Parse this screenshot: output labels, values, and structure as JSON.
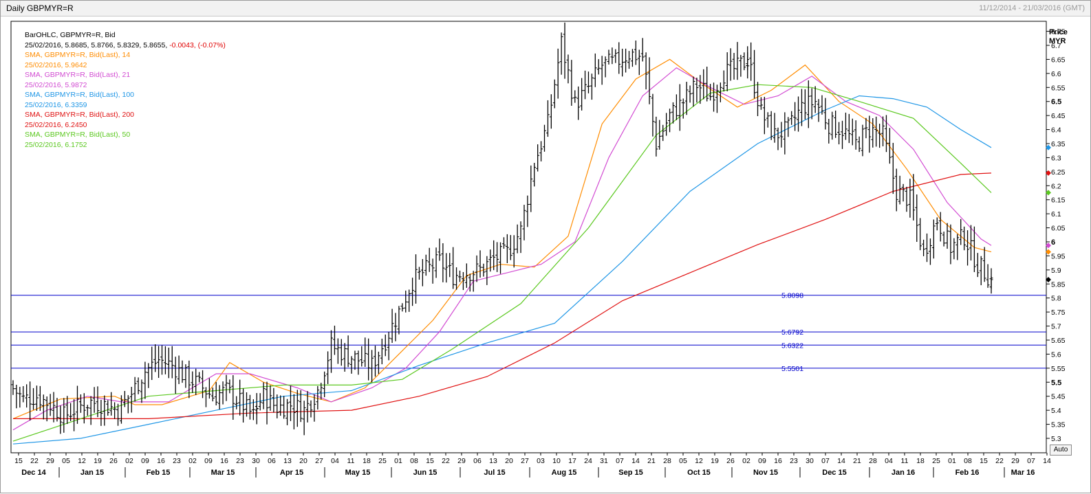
{
  "header": {
    "title": "Daily GBPMYR=R",
    "date_range": "11/12/2014 - 21/03/2016 (GMT)"
  },
  "legend": [
    {
      "text": "BarOHLC, GBPMYR=R, Bid",
      "color": "#000000"
    },
    {
      "text": "25/02/2016, 5.8685, 5.8766, 5.8329, 5.8655, ",
      "extra": "-0.0043, (-0.07%)",
      "color": "#000000",
      "extra_color": "#e00000"
    },
    {
      "text": "SMA, GBPMYR=R, Bid(Last),  14",
      "color": "#ff8c00"
    },
    {
      "text": "25/02/2016, 5.9642",
      "color": "#ff8c00"
    },
    {
      "text": "SMA, GBPMYR=R, Bid(Last),  21",
      "color": "#d24bd2"
    },
    {
      "text": "25/02/2016, 5.9872",
      "color": "#d24bd2"
    },
    {
      "text": "SMA, GBPMYR=R, Bid(Last),  100",
      "color": "#1e96e6"
    },
    {
      "text": "25/02/2016, 6.3359",
      "color": "#1e96e6"
    },
    {
      "text": "SMA, GBPMYR=R, Bid(Last),  200",
      "color": "#e01010"
    },
    {
      "text": "25/02/2016, 6.2450",
      "color": "#e01010"
    },
    {
      "text": "SMA, GBPMYR=R, Bid(Last),  50",
      "color": "#5ac81e"
    },
    {
      "text": "25/02/2016, 6.1752",
      "color": "#5ac81e"
    }
  ],
  "auto_button": "Auto",
  "chart_data": {
    "type": "line",
    "ylabel": "Price\nMYR",
    "ylim": [
      5.26,
      6.8
    ],
    "y_ticks": [
      "5.3",
      "5.35",
      "5.4",
      "5.45",
      "5.5",
      "5.55",
      "5.6",
      "5.65",
      "5.7",
      "5.75",
      "5.8",
      "5.85",
      "5.9",
      "5.95",
      "6",
      "6.05",
      "6.1",
      "6.15",
      "6.2",
      "6.25",
      "6.3",
      "6.35",
      "6.4",
      "6.45",
      "6.5",
      "6.55",
      "6.6",
      "6.65",
      "6.7",
      "6.75"
    ],
    "bold_y_ticks": [
      "5.5",
      "6",
      "6.5"
    ],
    "x_day_ticks": [
      "15",
      "22",
      "29",
      "05",
      "12",
      "19",
      "26",
      "02",
      "09",
      "16",
      "23",
      "02",
      "09",
      "16",
      "23",
      "30",
      "06",
      "13",
      "20",
      "27",
      "04",
      "11",
      "18",
      "25",
      "01",
      "08",
      "15",
      "22",
      "29",
      "06",
      "13",
      "20",
      "27",
      "03",
      "10",
      "17",
      "24",
      "31",
      "07",
      "14",
      "21",
      "28",
      "05",
      "12",
      "19",
      "26",
      "02",
      "09",
      "16",
      "23",
      "30",
      "07",
      "14",
      "21",
      "28",
      "04",
      "11",
      "18",
      "25",
      "01",
      "08",
      "15",
      "22",
      "29",
      "07",
      "14"
    ],
    "x_month_ticks": [
      "Dec 14",
      "Jan 15",
      "Feb 15",
      "Mar 15",
      "Apr 15",
      "May 15",
      "Jun 15",
      "Jul 15",
      "Aug 15",
      "Sep 15",
      "Oct 15",
      "Nov 15",
      "Dec 15",
      "Jan 16",
      "Feb 16",
      "Mar 16"
    ],
    "weekly_close": [
      5.49,
      5.44,
      5.45,
      5.42,
      5.38,
      5.41,
      5.43,
      5.42,
      5.4,
      5.46,
      5.54,
      5.58,
      5.56,
      5.52,
      5.49,
      5.45,
      5.47,
      5.43,
      5.38,
      5.45,
      5.41,
      5.42,
      5.4,
      5.47,
      5.63,
      5.6,
      5.58,
      5.56,
      5.65,
      5.75,
      5.86,
      5.9,
      5.93,
      5.88,
      5.89,
      5.9,
      5.94,
      5.96,
      6.04,
      6.28,
      6.42,
      6.71,
      6.49,
      6.55,
      6.63,
      6.64,
      6.67,
      6.66,
      6.35,
      6.45,
      6.5,
      6.56,
      6.52,
      6.6,
      6.62,
      6.66,
      6.46,
      6.38,
      6.4,
      6.48,
      6.5,
      6.42,
      6.4,
      6.35,
      6.4,
      6.38,
      6.18,
      6.15,
      5.96,
      6.08,
      5.98,
      6.02,
      5.92,
      5.8655
    ],
    "series": [
      {
        "name": "SMA 14",
        "color": "#ff8c00",
        "last": 5.9642,
        "points": [
          [
            0,
            5.37
          ],
          [
            14,
            5.44
          ],
          [
            30,
            5.45
          ],
          [
            36,
            5.42
          ],
          [
            44,
            5.42
          ],
          [
            58,
            5.47
          ],
          [
            64,
            5.57
          ],
          [
            74,
            5.5
          ],
          [
            84,
            5.46
          ],
          [
            94,
            5.43
          ],
          [
            104,
            5.48
          ],
          [
            114,
            5.6
          ],
          [
            124,
            5.72
          ],
          [
            134,
            5.88
          ],
          [
            144,
            5.92
          ],
          [
            154,
            5.91
          ],
          [
            164,
            6.02
          ],
          [
            174,
            6.42
          ],
          [
            184,
            6.58
          ],
          [
            194,
            6.65
          ],
          [
            204,
            6.56
          ],
          [
            214,
            6.48
          ],
          [
            224,
            6.54
          ],
          [
            234,
            6.63
          ],
          [
            244,
            6.5
          ],
          [
            254,
            6.42
          ],
          [
            264,
            6.26
          ],
          [
            274,
            6.08
          ],
          [
            284,
            5.98
          ],
          [
            289,
            5.9642
          ]
        ]
      },
      {
        "name": "SMA 21",
        "color": "#d24bd2",
        "last": 5.9872,
        "points": [
          [
            0,
            5.33
          ],
          [
            10,
            5.4
          ],
          [
            22,
            5.45
          ],
          [
            32,
            5.43
          ],
          [
            46,
            5.43
          ],
          [
            60,
            5.53
          ],
          [
            70,
            5.53
          ],
          [
            84,
            5.48
          ],
          [
            94,
            5.43
          ],
          [
            106,
            5.48
          ],
          [
            116,
            5.55
          ],
          [
            126,
            5.68
          ],
          [
            136,
            5.86
          ],
          [
            146,
            5.89
          ],
          [
            156,
            5.92
          ],
          [
            166,
            6.0
          ],
          [
            176,
            6.3
          ],
          [
            186,
            6.52
          ],
          [
            196,
            6.62
          ],
          [
            206,
            6.55
          ],
          [
            216,
            6.49
          ],
          [
            226,
            6.52
          ],
          [
            236,
            6.59
          ],
          [
            246,
            6.5
          ],
          [
            256,
            6.45
          ],
          [
            266,
            6.33
          ],
          [
            276,
            6.14
          ],
          [
            286,
            6.01
          ],
          [
            289,
            5.9872
          ]
        ]
      },
      {
        "name": "SMA 100",
        "color": "#1e96e6",
        "last": 6.3359,
        "points": [
          [
            0,
            5.28
          ],
          [
            20,
            5.3
          ],
          [
            40,
            5.35
          ],
          [
            60,
            5.4
          ],
          [
            80,
            5.45
          ],
          [
            100,
            5.47
          ],
          [
            120,
            5.56
          ],
          [
            140,
            5.64
          ],
          [
            160,
            5.71
          ],
          [
            180,
            5.93
          ],
          [
            200,
            6.18
          ],
          [
            220,
            6.35
          ],
          [
            240,
            6.47
          ],
          [
            250,
            6.52
          ],
          [
            260,
            6.51
          ],
          [
            270,
            6.48
          ],
          [
            280,
            6.4
          ],
          [
            289,
            6.3359
          ]
        ]
      },
      {
        "name": "SMA 200",
        "color": "#e01010",
        "last": 6.245,
        "points": [
          [
            0,
            5.37
          ],
          [
            40,
            5.37
          ],
          [
            70,
            5.39
          ],
          [
            100,
            5.4
          ],
          [
            120,
            5.45
          ],
          [
            140,
            5.52
          ],
          [
            160,
            5.64
          ],
          [
            180,
            5.79
          ],
          [
            200,
            5.89
          ],
          [
            220,
            5.99
          ],
          [
            240,
            6.08
          ],
          [
            260,
            6.18
          ],
          [
            280,
            6.24
          ],
          [
            289,
            6.245
          ]
        ]
      },
      {
        "name": "SMA 50",
        "color": "#5ac81e",
        "last": 6.1752,
        "points": [
          [
            0,
            5.29
          ],
          [
            20,
            5.37
          ],
          [
            40,
            5.45
          ],
          [
            60,
            5.47
          ],
          [
            80,
            5.49
          ],
          [
            100,
            5.49
          ],
          [
            115,
            5.51
          ],
          [
            130,
            5.62
          ],
          [
            150,
            5.78
          ],
          [
            170,
            6.05
          ],
          [
            190,
            6.38
          ],
          [
            206,
            6.53
          ],
          [
            220,
            6.56
          ],
          [
            236,
            6.55
          ],
          [
            250,
            6.5
          ],
          [
            266,
            6.44
          ],
          [
            280,
            6.28
          ],
          [
            289,
            6.1752
          ]
        ]
      }
    ],
    "horizontal_lines": [
      {
        "value": 5.8098,
        "label": "5.8098"
      },
      {
        "value": 5.6792,
        "label": "5.6792"
      },
      {
        "value": 5.6322,
        "label": "5.6322"
      },
      {
        "value": 5.5501,
        "label": "5.5501"
      }
    ],
    "axis_markers": [
      {
        "value": 6.3359,
        "color": "#1e96e6"
      },
      {
        "value": 6.245,
        "color": "#e01010"
      },
      {
        "value": 6.1752,
        "color": "#5ac81e"
      },
      {
        "value": 5.9872,
        "color": "#d24bd2"
      },
      {
        "value": 5.9642,
        "color": "#ff8c00"
      },
      {
        "value": 5.8655,
        "color": "#000000"
      }
    ]
  }
}
